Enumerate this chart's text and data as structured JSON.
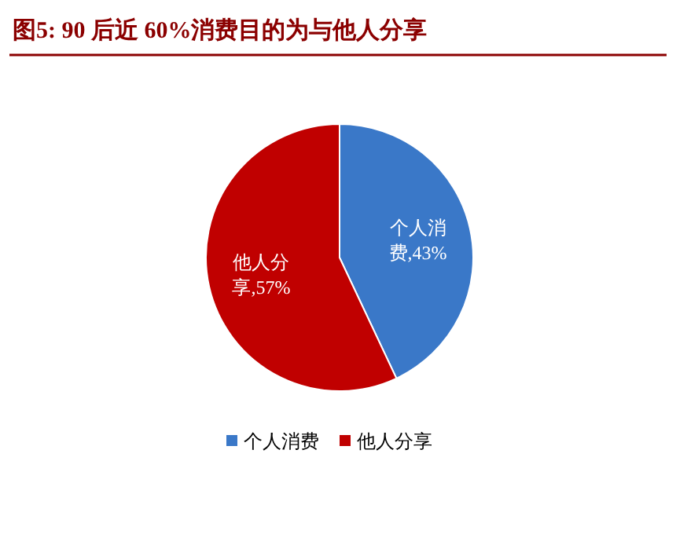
{
  "chart_data": {
    "type": "pie",
    "title": "图5:  90 后近 60%消费目的为与他人分享",
    "categories": [
      "个人消费",
      "他人分享"
    ],
    "values": [
      43,
      57
    ],
    "colors": [
      "#3a78c8",
      "#c00000"
    ],
    "value_labels": [
      "个人消费,43%",
      "他人分享,57%"
    ],
    "legend": "bottom"
  }
}
